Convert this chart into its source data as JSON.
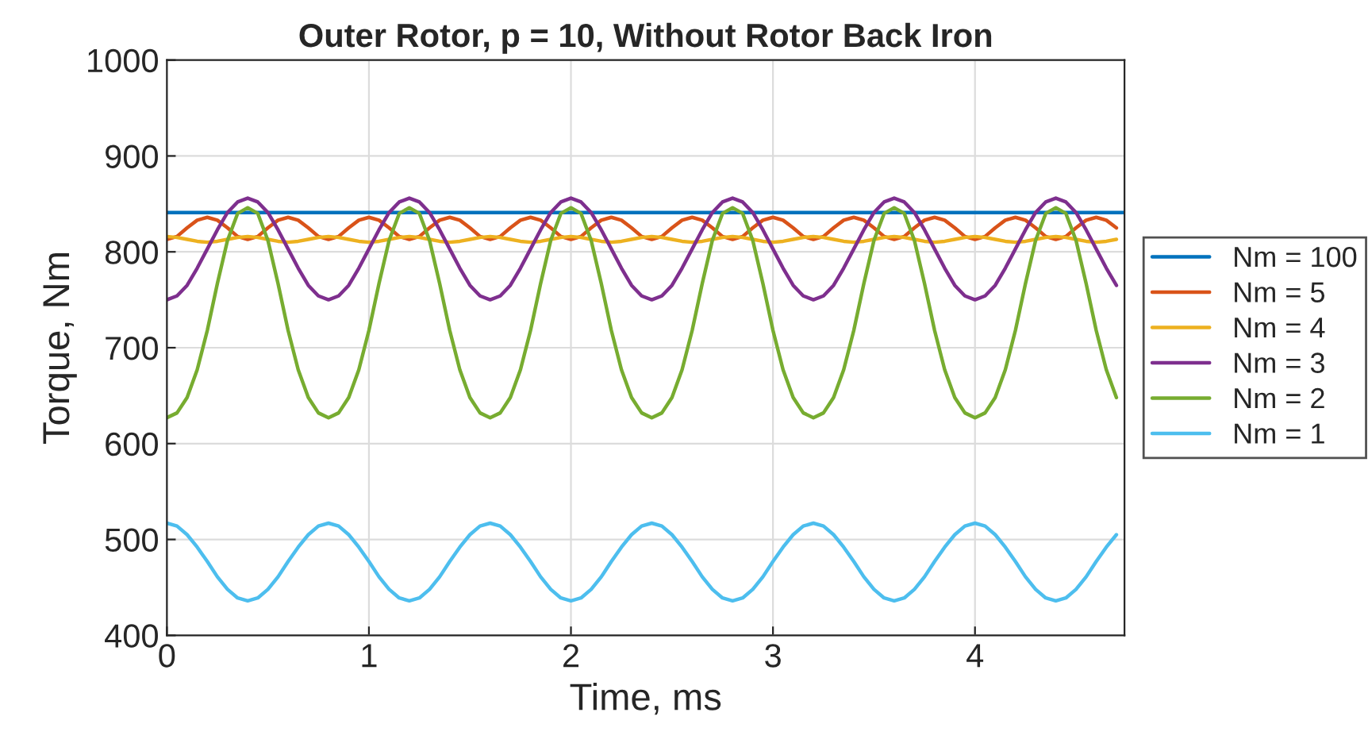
{
  "chart_data": {
    "type": "line",
    "title": "Outer Rotor, p = 10, Without Rotor Back Iron",
    "xlabel": "Time, ms",
    "ylabel": "Torque, Nm",
    "x": [
      0,
      0.05,
      0.1,
      0.15,
      0.2,
      0.25,
      0.3,
      0.35,
      0.4,
      0.45,
      0.5,
      0.55,
      0.6,
      0.65,
      0.7,
      0.75,
      0.8,
      0.85,
      0.9,
      0.95,
      1.0,
      1.05,
      1.1,
      1.15,
      1.2,
      1.25,
      1.3,
      1.35,
      1.4,
      1.45,
      1.5,
      1.55,
      1.6,
      1.65,
      1.7,
      1.75,
      1.8,
      1.85,
      1.9,
      1.95,
      2.0,
      2.05,
      2.1,
      2.15,
      2.2,
      2.25,
      2.3,
      2.35,
      2.4,
      2.45,
      2.5,
      2.55,
      2.6,
      2.65,
      2.7,
      2.75,
      2.8,
      2.85,
      2.9,
      2.95,
      3.0,
      3.05,
      3.1,
      3.15,
      3.2,
      3.25,
      3.3,
      3.35,
      3.4,
      3.45,
      3.5,
      3.55,
      3.6,
      3.65,
      3.7,
      3.75,
      3.8,
      3.85,
      3.9,
      3.95,
      4.0,
      4.05,
      4.1,
      4.15,
      4.2,
      4.25,
      4.3,
      4.35,
      4.4,
      4.45,
      4.5,
      4.55,
      4.6,
      4.65,
      4.7
    ],
    "series": [
      {
        "name": "Nm = 100",
        "color": "#0072bd",
        "x": [
          0,
          4.74
        ],
        "values": [
          841,
          841
        ]
      },
      {
        "name": "Nm = 5",
        "color": "#d95319",
        "values": [
          813,
          816,
          825,
          833,
          836,
          833,
          825,
          816,
          813,
          816,
          825,
          833,
          836,
          833,
          825,
          816,
          813,
          816,
          825,
          833,
          836,
          833,
          825,
          816,
          813,
          816,
          825,
          833,
          836,
          833,
          825,
          816,
          813,
          816,
          825,
          833,
          836,
          833,
          825,
          816,
          813,
          816,
          825,
          833,
          836,
          833,
          825,
          816,
          813,
          816,
          825,
          833,
          836,
          833,
          825,
          816,
          813,
          816,
          825,
          833,
          836,
          833,
          825,
          816,
          813,
          816,
          825,
          833,
          836,
          833,
          825,
          816,
          813,
          816,
          825,
          833,
          836,
          833,
          825,
          816,
          813,
          816,
          825,
          833,
          836,
          833,
          825,
          816,
          813,
          816,
          825,
          833,
          836,
          833,
          825
        ]
      },
      {
        "name": "Nm = 4",
        "color": "#edb120",
        "values": [
          816,
          815,
          813,
          811,
          810,
          811,
          813,
          815,
          816,
          815,
          813,
          811,
          810,
          811,
          813,
          815,
          816,
          815,
          813,
          811,
          810,
          811,
          813,
          815,
          816,
          815,
          813,
          811,
          810,
          811,
          813,
          815,
          816,
          815,
          813,
          811,
          810,
          811,
          813,
          815,
          816,
          815,
          813,
          811,
          810,
          811,
          813,
          815,
          816,
          815,
          813,
          811,
          810,
          811,
          813,
          815,
          816,
          815,
          813,
          811,
          810,
          811,
          813,
          815,
          816,
          815,
          813,
          811,
          810,
          811,
          813,
          815,
          816,
          815,
          813,
          811,
          810,
          811,
          813,
          815,
          816,
          815,
          813,
          811,
          810,
          811,
          813,
          815,
          816,
          815,
          813,
          811,
          810,
          811,
          813
        ]
      },
      {
        "name": "Nm = 3",
        "color": "#7e2f8e",
        "values": [
          750,
          754,
          765,
          783,
          803,
          823,
          841,
          852,
          856,
          852,
          841,
          823,
          803,
          783,
          765,
          754,
          750,
          754,
          765,
          783,
          803,
          823,
          841,
          852,
          856,
          852,
          841,
          823,
          803,
          783,
          765,
          754,
          750,
          754,
          765,
          783,
          803,
          823,
          841,
          852,
          856,
          852,
          841,
          823,
          803,
          783,
          765,
          754,
          750,
          754,
          765,
          783,
          803,
          823,
          841,
          852,
          856,
          852,
          841,
          823,
          803,
          783,
          765,
          754,
          750,
          754,
          765,
          783,
          803,
          823,
          841,
          852,
          856,
          852,
          841,
          823,
          803,
          783,
          765,
          754,
          750,
          754,
          765,
          783,
          803,
          823,
          841,
          852,
          856,
          852,
          841,
          823,
          803,
          783,
          765
        ]
      },
      {
        "name": "Nm = 2",
        "color": "#77ac30",
        "values": [
          627,
          632,
          648,
          677,
          718,
          767,
          812,
          840,
          846,
          840,
          812,
          767,
          718,
          677,
          648,
          632,
          627,
          632,
          648,
          677,
          718,
          767,
          812,
          840,
          846,
          840,
          812,
          767,
          718,
          677,
          648,
          632,
          627,
          632,
          648,
          677,
          718,
          767,
          812,
          840,
          846,
          840,
          812,
          767,
          718,
          677,
          648,
          632,
          627,
          632,
          648,
          677,
          718,
          767,
          812,
          840,
          846,
          840,
          812,
          767,
          718,
          677,
          648,
          632,
          627,
          632,
          648,
          677,
          718,
          767,
          812,
          840,
          846,
          840,
          812,
          767,
          718,
          677,
          648,
          632,
          627,
          632,
          648,
          677,
          718,
          767,
          812,
          840,
          846,
          840,
          812,
          767,
          718,
          677,
          648
        ]
      },
      {
        "name": "Nm = 1",
        "color": "#4dbeee",
        "values": [
          517,
          514,
          505,
          492,
          477,
          461,
          448,
          439,
          436,
          439,
          448,
          461,
          477,
          492,
          505,
          514,
          517,
          514,
          505,
          492,
          477,
          461,
          448,
          439,
          436,
          439,
          448,
          461,
          477,
          492,
          505,
          514,
          517,
          514,
          505,
          492,
          477,
          461,
          448,
          439,
          436,
          439,
          448,
          461,
          477,
          492,
          505,
          514,
          517,
          514,
          505,
          492,
          477,
          461,
          448,
          439,
          436,
          439,
          448,
          461,
          477,
          492,
          505,
          514,
          517,
          514,
          505,
          492,
          477,
          461,
          448,
          439,
          436,
          439,
          448,
          461,
          477,
          492,
          505,
          514,
          517,
          514,
          505,
          492,
          477,
          461,
          448,
          439,
          436,
          439,
          448,
          461,
          477,
          492,
          505
        ]
      }
    ],
    "xlim": [
      0,
      4.74
    ],
    "xticks": [
      0,
      1,
      2,
      3,
      4
    ],
    "ylim": [
      400,
      1000
    ],
    "yticks": [
      400,
      500,
      600,
      700,
      800,
      900,
      1000
    ],
    "grid": true,
    "legend": "right",
    "line_style": "solid",
    "marker": "none"
  }
}
